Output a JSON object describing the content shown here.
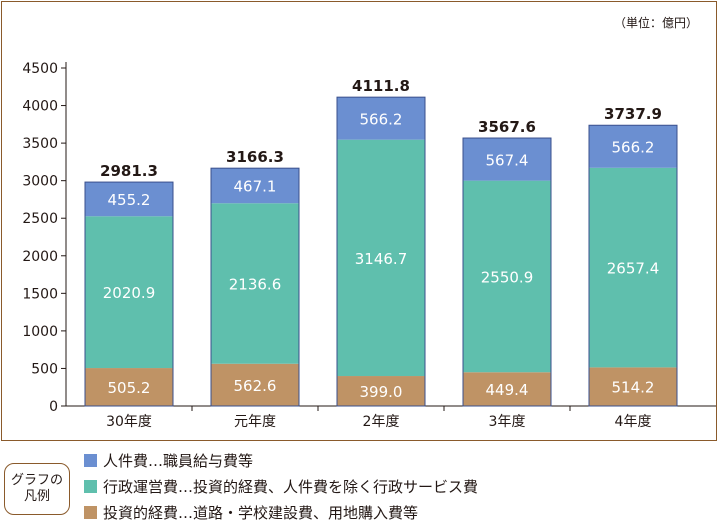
{
  "unit_label": "（単位：億円）",
  "colors": {
    "personnel": "#6b8fd1",
    "admin": "#5fbfad",
    "investment": "#bf9365",
    "frame": "#8a5a2b"
  },
  "legend": {
    "title": "グラフの\n凡例",
    "items": [
      {
        "label": "人件費…職員給与費等",
        "color": "#6b8fd1"
      },
      {
        "label": "行政運営費…投資的経費、人件費を除く行政サービス費",
        "color": "#5fbfad"
      },
      {
        "label": "投資的経費…道路・学校建設費、用地購入費等",
        "color": "#bf9365"
      }
    ]
  },
  "chart_data": {
    "type": "bar",
    "stacked": true,
    "categories": [
      "30年度",
      "元年度",
      "2年度",
      "3年度",
      "4年度"
    ],
    "series": [
      {
        "key": "investment",
        "values": [
          505.2,
          562.6,
          399.0,
          449.4,
          514.2
        ],
        "labels": [
          "505.2",
          "562.6",
          "399.0",
          "449.4",
          "514.2"
        ]
      },
      {
        "key": "admin",
        "values": [
          2020.9,
          2136.6,
          3146.7,
          2550.9,
          2657.4
        ],
        "labels": [
          "2020.9",
          "2136.6",
          "3146.7",
          "2550.9",
          "2657.4"
        ]
      },
      {
        "key": "personnel",
        "values": [
          455.2,
          467.1,
          566.2,
          567.4,
          566.2
        ],
        "labels": [
          "455.2",
          "467.1",
          "566.2",
          "567.4",
          "566.2"
        ]
      }
    ],
    "totals": [
      "2981.3",
      "3166.3",
      "4111.8",
      "3567.6",
      "3737.9"
    ],
    "ylim": [
      0,
      4500
    ],
    "yticks": [
      "0",
      "500",
      "1000",
      "1500",
      "2000",
      "2500",
      "3000",
      "3500",
      "4000",
      "4500"
    ],
    "grid": false,
    "legend_position": "bottom"
  }
}
